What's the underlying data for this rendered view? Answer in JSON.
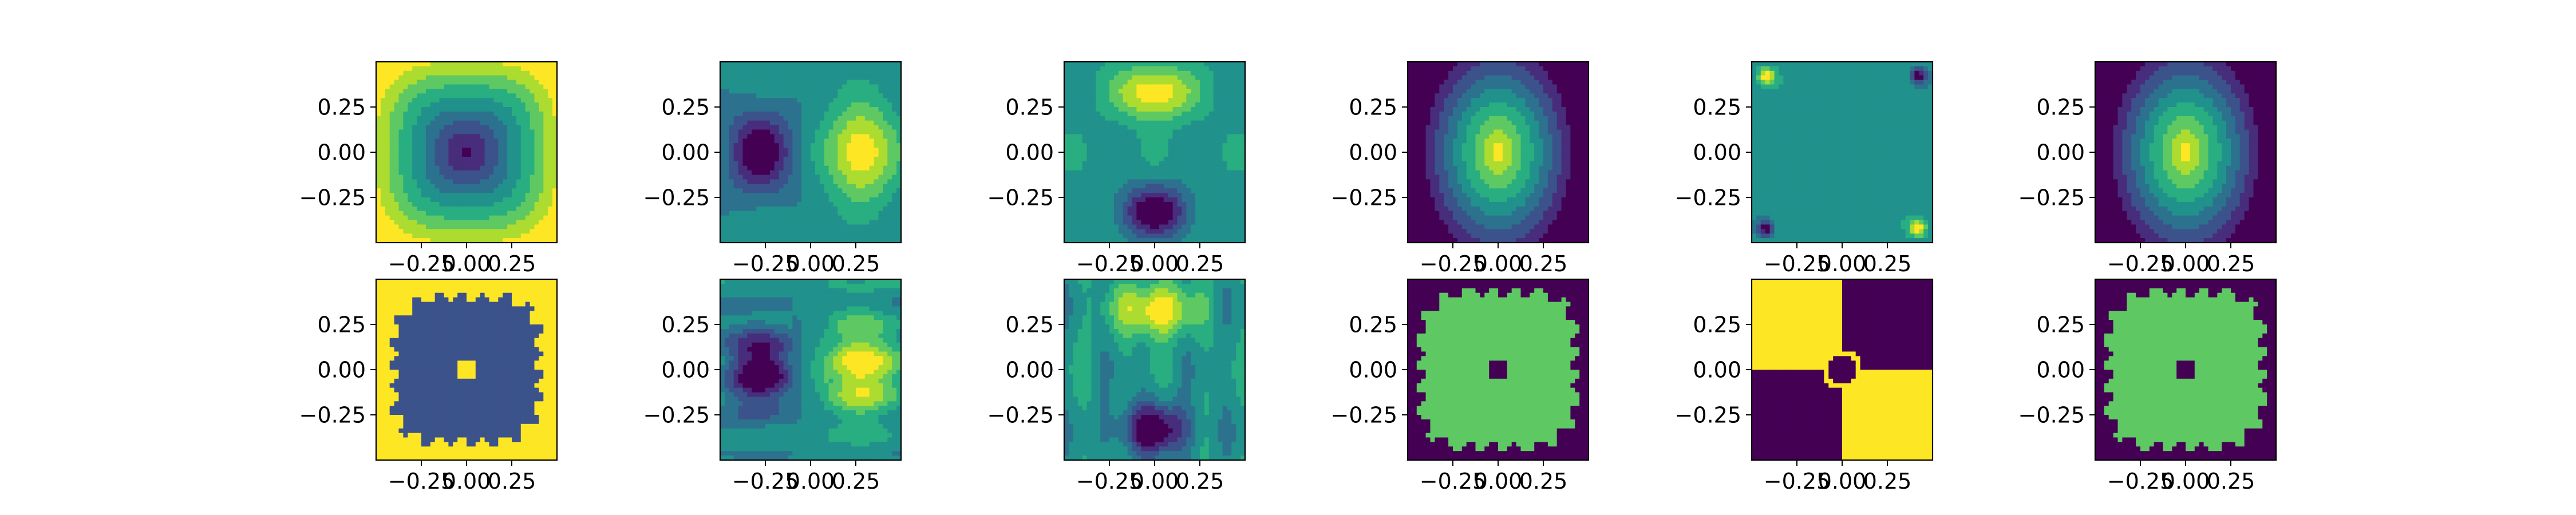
{
  "chart_data": {
    "type": "heatmap",
    "layout": {
      "rows": 2,
      "cols": 6
    },
    "xlim": [
      -0.5,
      0.5
    ],
    "ylim": [
      -0.5,
      0.5
    ],
    "xticks": [
      -0.25,
      0.0,
      0.25
    ],
    "yticks": [
      -0.25,
      0.0,
      0.25
    ],
    "xtick_labels": [
      "−0.25",
      "0.00",
      "0.25"
    ],
    "ytick_labels": [
      "−0.25",
      "0.00",
      "0.25"
    ],
    "colormap": "viridis",
    "palette": [
      "#440154",
      "#472d7b",
      "#3b528b",
      "#2c728e",
      "#21918c",
      "#28ae80",
      "#5ec962",
      "#addc30",
      "#fde725"
    ],
    "panels": [
      {
        "row": 0,
        "col": 0,
        "pattern": "bowl-square"
      },
      {
        "row": 0,
        "col": 1,
        "pattern": "dipole-horizontal"
      },
      {
        "row": 0,
        "col": 2,
        "pattern": "dipole-vertical"
      },
      {
        "row": 0,
        "col": 3,
        "pattern": "peak-center"
      },
      {
        "row": 0,
        "col": 4,
        "pattern": "corner-spots"
      },
      {
        "row": 0,
        "col": 5,
        "pattern": "peak-center"
      },
      {
        "row": 1,
        "col": 0,
        "pattern": "binary-star-bowl"
      },
      {
        "row": 1,
        "col": 1,
        "pattern": "dipole-horizontal-ragged"
      },
      {
        "row": 1,
        "col": 2,
        "pattern": "dipole-vertical-ragged"
      },
      {
        "row": 1,
        "col": 3,
        "pattern": "binary-star-peak"
      },
      {
        "row": 1,
        "col": 4,
        "pattern": "quadrant-sign"
      },
      {
        "row": 1,
        "col": 5,
        "pattern": "binary-star-peak"
      }
    ]
  }
}
